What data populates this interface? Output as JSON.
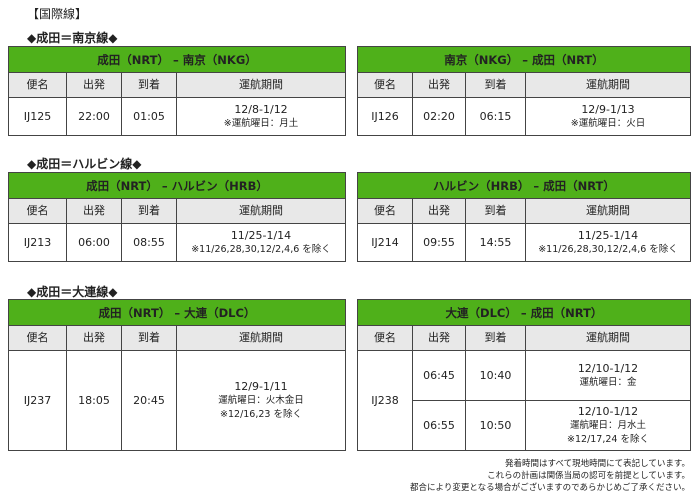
{
  "title": "【国際線】",
  "columns": [
    "便名",
    "出発",
    "到着",
    "運航期間"
  ],
  "routes": [
    {
      "label": "◆成田＝南京線◆",
      "tables": [
        {
          "title": "成田（NRT） – 南京（NKG）",
          "rows": [
            {
              "flight": "IJ125",
              "legs": [
                {
                  "dep": "22:00",
                  "arr": "01:05",
                  "period": [
                    "12/8-1/12",
                    "※運航曜日：月土"
                  ]
                }
              ]
            }
          ]
        },
        {
          "title": "南京（NKG） – 成田（NRT）",
          "rows": [
            {
              "flight": "IJ126",
              "legs": [
                {
                  "dep": "02:20",
                  "arr": "06:15",
                  "period": [
                    "12/9-1/13",
                    "※運航曜日：火日"
                  ]
                }
              ]
            }
          ]
        }
      ]
    },
    {
      "label": "◆成田＝ハルビン線◆",
      "tables": [
        {
          "title": "成田（NRT） – ハルビン（HRB）",
          "rows": [
            {
              "flight": "IJ213",
              "legs": [
                {
                  "dep": "06:00",
                  "arr": "08:55",
                  "period": [
                    "11/25-1/14",
                    "※11/26,28,30,12/2,4,6 を除く"
                  ]
                }
              ]
            }
          ]
        },
        {
          "title": "ハルビン（HRB） – 成田（NRT）",
          "rows": [
            {
              "flight": "IJ214",
              "legs": [
                {
                  "dep": "09:55",
                  "arr": "14:55",
                  "period": [
                    "11/25-1/14",
                    "※11/26,28,30,12/2,4,6 を除く"
                  ]
                }
              ]
            }
          ]
        }
      ]
    },
    {
      "label": "◆成田＝大連線◆",
      "tables": [
        {
          "title": "成田（NRT） – 大連（DLC）",
          "rows": [
            {
              "flight": "IJ237",
              "legs": [
                {
                  "dep": "18:05",
                  "arr": "20:45",
                  "period": [
                    "12/9-1/11",
                    "運航曜日：火木金日",
                    "※12/16,23 を除く"
                  ]
                }
              ]
            }
          ]
        },
        {
          "title": "大連（DLC） – 成田（NRT）",
          "rows": [
            {
              "flight": "IJ238",
              "legs": [
                {
                  "dep": "06:45",
                  "arr": "10:40",
                  "period": [
                    "12/10-1/12",
                    "運航曜日：金"
                  ]
                },
                {
                  "dep": "06:55",
                  "arr": "10:50",
                  "period": [
                    "12/10-1/12",
                    "運航曜日：月水土",
                    "※12/17,24 を除く"
                  ]
                }
              ]
            }
          ]
        }
      ]
    }
  ],
  "notes": [
    "発着時間はすべて現地時間にて表記しています。",
    "これらの計画は関係当局の認可を前提としています。",
    "都合により変更となる場合がございますのであらかじめご了承ください。"
  ]
}
